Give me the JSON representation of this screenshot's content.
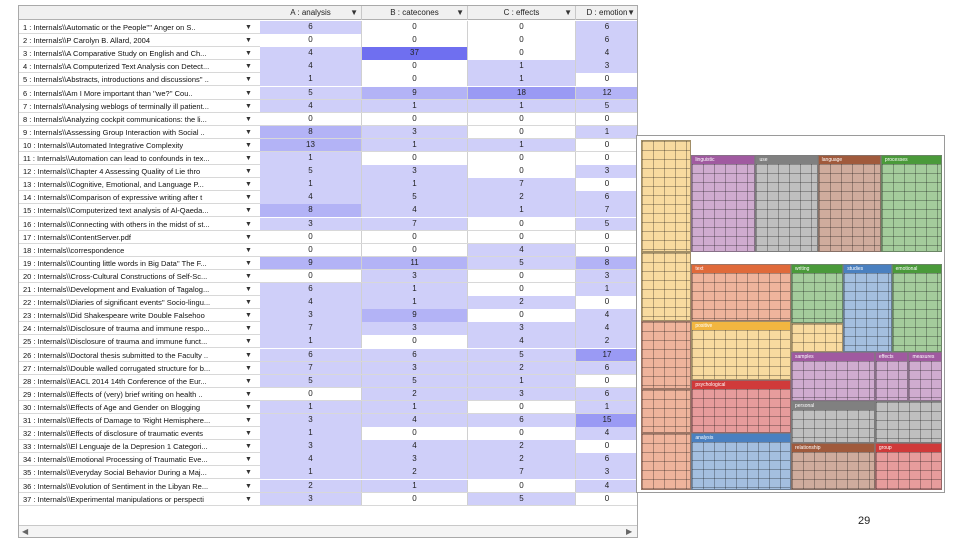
{
  "grid": {
    "columns": [
      {
        "label": "A : analysis",
        "left": 241,
        "width": 102
      },
      {
        "label": "B : catecones",
        "left": 343,
        "width": 106
      },
      {
        "label": "C : effects",
        "left": 449,
        "width": 108
      },
      {
        "label": "D : emotion",
        "left": 557,
        "width": 63
      }
    ],
    "rows": [
      {
        "label": "1 : Internals\\\\Automatic or the People'''' Anger on S..",
        "v": [
          "6",
          "0",
          "0",
          "6"
        ]
      },
      {
        "label": "2 : Internals\\\\P Carolyn B. Allard, 2004",
        "v": [
          "0",
          "0",
          "0",
          "6"
        ]
      },
      {
        "label": "3 : Internals\\\\A Comparative Study on English and Ch...",
        "v": [
          "4",
          "37",
          "0",
          "4"
        ]
      },
      {
        "label": "4 : Internals\\\\A Computerized Text Analysis con Detect...",
        "v": [
          "4",
          "0",
          "1",
          "3"
        ]
      },
      {
        "label": "5 : Internals\\\\Abstracts, introductions and discussions'' ..",
        "v": [
          "1",
          "0",
          "1",
          "0"
        ]
      },
      {
        "label": "6 : Internals\\\\Am I More important than ''we?'' Cou..",
        "v": [
          "5",
          "9",
          "18",
          "12"
        ]
      },
      {
        "label": "7 : Internals\\\\Analysing weblogs of terminally ill patient...",
        "v": [
          "4",
          "1",
          "1",
          "5"
        ]
      },
      {
        "label": "8 : Internals\\\\Analyzing cockpit communications: the li...",
        "v": [
          "0",
          "0",
          "0",
          "0"
        ]
      },
      {
        "label": "9 : Internals\\\\Assessing Group Interaction with Social ..",
        "v": [
          "8",
          "3",
          "0",
          "1"
        ]
      },
      {
        "label": "10 : Internals\\\\Automated Integrative Complexity",
        "v": [
          "13",
          "1",
          "1",
          "0"
        ]
      },
      {
        "label": "11 : Internals\\\\Automation can lead to confounds in tex...",
        "v": [
          "1",
          "0",
          "0",
          "0"
        ]
      },
      {
        "label": "12 : Internals\\\\Chapter 4 Assessing Quality of Lie thro",
        "v": [
          "5",
          "3",
          "0",
          "3"
        ]
      },
      {
        "label": "13 : Internals\\\\Cognitive, Emotional, and Language P...",
        "v": [
          "1",
          "1",
          "7",
          "0"
        ]
      },
      {
        "label": "14 : Internals\\\\Comparison of expressive writing after t",
        "v": [
          "4",
          "5",
          "2",
          "6"
        ]
      },
      {
        "label": "15 : Internals\\\\Computerized text analysis of Al-Qaeda...",
        "v": [
          "8",
          "4",
          "1",
          "7"
        ]
      },
      {
        "label": "16 : Internals\\\\Connecting with others in the midst of st...",
        "v": [
          "3",
          "7",
          "0",
          "5"
        ]
      },
      {
        "label": "17 : Internals\\\\ContentServer.pdf",
        "v": [
          "0",
          "0",
          "0",
          "0"
        ]
      },
      {
        "label": "18 : Internals\\\\correspondence",
        "v": [
          "0",
          "0",
          "4",
          "0"
        ]
      },
      {
        "label": "19 : Internals\\\\Counting little words in Big Data'' The F...",
        "v": [
          "9",
          "11",
          "5",
          "8"
        ]
      },
      {
        "label": "20 : Internals\\\\Cross-Cultural Constructions of Self-Sc...",
        "v": [
          "0",
          "3",
          "0",
          "3"
        ]
      },
      {
        "label": "21 : Internals\\\\Development and Evaluation of Tagalog...",
        "v": [
          "6",
          "1",
          "0",
          "1"
        ]
      },
      {
        "label": "22 : Internals\\\\Diaries of significant events'' Socio-lingu...",
        "v": [
          "4",
          "1",
          "2",
          "0"
        ]
      },
      {
        "label": "23 : Internals\\\\Did Shakespeare write Double Falsehoo",
        "v": [
          "3",
          "9",
          "0",
          "4"
        ]
      },
      {
        "label": "24 : Internals\\\\Disclosure of trauma and immune respo...",
        "v": [
          "7",
          "3",
          "3",
          "4"
        ]
      },
      {
        "label": "25 : Internals\\\\Disclosure of trauma and immune funct...",
        "v": [
          "1",
          "0",
          "4",
          "2"
        ]
      },
      {
        "label": "26 : Internals\\\\Doctoral thesis submitted to the Faculty ..",
        "v": [
          "6",
          "6",
          "5",
          "17"
        ]
      },
      {
        "label": "27 : Internals\\\\Double walled corrugated structure for b...",
        "v": [
          "7",
          "3",
          "2",
          "6"
        ]
      },
      {
        "label": "28 : Internals\\\\EACL 2014 14th Conference of the Eur...",
        "v": [
          "5",
          "5",
          "1",
          "0"
        ]
      },
      {
        "label": "29 : Internals\\\\Effects of (very) brief writing on health ..",
        "v": [
          "0",
          "2",
          "3",
          "6"
        ]
      },
      {
        "label": "30 : Internals\\\\Effects of Age and Gender on Blogging",
        "v": [
          "1",
          "1",
          "0",
          "1"
        ]
      },
      {
        "label": "31 : Internals\\\\Effects of Damage to 'Right Hemisphere...",
        "v": [
          "3",
          "4",
          "6",
          "15"
        ]
      },
      {
        "label": "32 : Internals\\\\Effects of disclosure of traumatic events",
        "v": [
          "1",
          "0",
          "0",
          "4"
        ]
      },
      {
        "label": "33 : Internals\\\\El Lenguaje de la Depresion 1 Categori...",
        "v": [
          "3",
          "4",
          "2",
          "0"
        ]
      },
      {
        "label": "34 : Internals\\\\Emotional Processing of Traumatic Eve...",
        "v": [
          "4",
          "3",
          "2",
          "6"
        ]
      },
      {
        "label": "35 : Internals\\\\Everyday Social Behavior During a Maj...",
        "v": [
          "1",
          "2",
          "7",
          "3"
        ]
      },
      {
        "label": "36 : Internals\\\\Evolution of Sentiment in the Libyan Re...",
        "v": [
          "2",
          "1",
          "0",
          "4"
        ]
      },
      {
        "label": "37 : Internals\\\\Experimental manipulations or perspecti",
        "v": [
          "3",
          "0",
          "5",
          "0"
        ]
      }
    ]
  },
  "treemap": {
    "categories": [
      {
        "name": "",
        "color": "#f2b640",
        "x": 0,
        "y": 0,
        "w": 51,
        "h": 115
      },
      {
        "name": "linguistic",
        "color": "#a05aa0",
        "x": 51,
        "y": 15,
        "w": 65,
        "h": 100
      },
      {
        "name": "use",
        "color": "#808080",
        "x": 116,
        "y": 15,
        "w": 63,
        "h": 100
      },
      {
        "name": "language",
        "color": "#a05a3c",
        "x": 179,
        "y": 15,
        "w": 64,
        "h": 100
      },
      {
        "name": "processes",
        "color": "#4a9a3a",
        "x": 243,
        "y": 15,
        "w": 62,
        "h": 100
      },
      {
        "name": "",
        "color": "#f2b640",
        "x": 0,
        "y": 115,
        "w": 51,
        "h": 70
      },
      {
        "name": "text",
        "color": "#e06a3a",
        "x": 51,
        "y": 127,
        "w": 101,
        "h": 58
      },
      {
        "name": "writing",
        "color": "#4a9a3a",
        "x": 152,
        "y": 127,
        "w": 53,
        "h": 60
      },
      {
        "name": "studies",
        "color": "#4a80c0",
        "x": 205,
        "y": 127,
        "w": 49,
        "h": 90
      },
      {
        "name": "emotional",
        "color": "#4a9a3a",
        "x": 254,
        "y": 127,
        "w": 51,
        "h": 90
      },
      {
        "name": "",
        "color": "#e06a3a",
        "x": 0,
        "y": 185,
        "w": 51,
        "h": 70
      },
      {
        "name": "positive",
        "color": "#f2b640",
        "x": 51,
        "y": 185,
        "w": 101,
        "h": 60
      },
      {
        "name": "",
        "color": "#f2b640",
        "x": 152,
        "y": 187,
        "w": 53,
        "h": 30
      },
      {
        "name": "samples",
        "color": "#a05aa0",
        "x": 152,
        "y": 217,
        "w": 85,
        "h": 50
      },
      {
        "name": "effects",
        "color": "#a05aa0",
        "x": 237,
        "y": 217,
        "w": 34,
        "h": 50
      },
      {
        "name": "measures",
        "color": "#a05aa0",
        "x": 271,
        "y": 217,
        "w": 34,
        "h": 50
      },
      {
        "name": "",
        "color": "#e06a3a",
        "x": 0,
        "y": 255,
        "w": 51,
        "h": 45
      },
      {
        "name": "psychological",
        "color": "#d03a3a",
        "x": 51,
        "y": 245,
        "w": 101,
        "h": 55
      },
      {
        "name": "personal",
        "color": "#808080",
        "x": 152,
        "y": 267,
        "w": 85,
        "h": 43
      },
      {
        "name": "",
        "color": "#808080",
        "x": 237,
        "y": 267,
        "w": 68,
        "h": 43
      },
      {
        "name": "",
        "color": "#e06a3a",
        "x": 0,
        "y": 300,
        "w": 51,
        "h": 58
      },
      {
        "name": "analysis",
        "color": "#4a80c0",
        "x": 51,
        "y": 300,
        "w": 101,
        "h": 58
      },
      {
        "name": "relationship",
        "color": "#a05a3c",
        "x": 152,
        "y": 310,
        "w": 85,
        "h": 48
      },
      {
        "name": "group",
        "color": "#d03a3a",
        "x": 237,
        "y": 310,
        "w": 68,
        "h": 48
      }
    ]
  },
  "page_number": "29"
}
